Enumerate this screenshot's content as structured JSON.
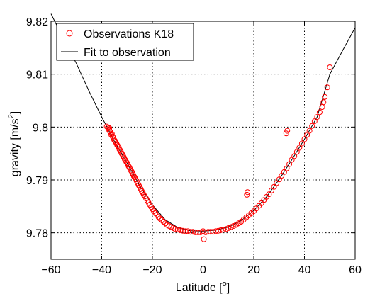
{
  "chart_data": {
    "type": "scatter",
    "title": "",
    "xlabel": "Latitude [",
    "xlabel_sup": "o",
    "xlabel_end": "]",
    "ylabel": "gravity [m/s",
    "ylabel_sup": "2",
    "ylabel_end": "]",
    "xlim": [
      -60,
      60
    ],
    "ylim": [
      9.775,
      9.82
    ],
    "xticks": [
      -60,
      -40,
      -20,
      0,
      20,
      40,
      60
    ],
    "xtick_labels": [
      "−60",
      "−40",
      "−20",
      "0",
      "20",
      "40",
      "60"
    ],
    "yticks": [
      9.78,
      9.79,
      9.8,
      9.81,
      9.82
    ],
    "ytick_labels": [
      "9.78",
      "9.79",
      "9.8",
      "9.81",
      "9.82"
    ],
    "grid": true,
    "legend_position": "top-left",
    "colors": {
      "observations": "#ff0000",
      "fit": "#000000",
      "grid": "#000000"
    },
    "series": [
      {
        "name": "Observations K18",
        "marker": "circle",
        "points": [
          [
            -38,
            9.8001
          ],
          [
            -37.6,
            9.7999
          ],
          [
            -37.2,
            9.7995
          ],
          [
            -37,
            9.7998
          ],
          [
            -36.8,
            9.7992
          ],
          [
            -36.5,
            9.799
          ],
          [
            -36.2,
            9.7985
          ],
          [
            -36,
            9.7987
          ],
          [
            -35.7,
            9.7982
          ],
          [
            -35.4,
            9.798
          ],
          [
            -35.1,
            9.7976
          ],
          [
            -34.8,
            9.7974
          ],
          [
            -34.5,
            9.7972
          ],
          [
            -34.2,
            9.7969
          ],
          [
            -33.9,
            9.7966
          ],
          [
            -33.6,
            9.7964
          ],
          [
            -33.3,
            9.7962
          ],
          [
            -33,
            9.7958
          ],
          [
            -32.7,
            9.7956
          ],
          [
            -32.4,
            9.7953
          ],
          [
            -32.1,
            9.795
          ],
          [
            -31.8,
            9.7948
          ],
          [
            -31.5,
            9.7945
          ],
          [
            -31.2,
            9.7942
          ],
          [
            -30.9,
            9.7939
          ],
          [
            -30.6,
            9.7937
          ],
          [
            -30.3,
            9.7934
          ],
          [
            -30,
            9.7932
          ],
          [
            -29.7,
            9.7929
          ],
          [
            -29.4,
            9.7926
          ],
          [
            -29.1,
            9.7924
          ],
          [
            -28.8,
            9.7921
          ],
          [
            -28.5,
            9.7918
          ],
          [
            -28.2,
            9.7916
          ],
          [
            -27.9,
            9.7913
          ],
          [
            -27.6,
            9.791
          ],
          [
            -27.3,
            9.7907
          ],
          [
            -27,
            9.7905
          ],
          [
            -26.6,
            9.7901
          ],
          [
            -26.2,
            9.7898
          ],
          [
            -25.8,
            9.7894
          ],
          [
            -25.4,
            9.789
          ],
          [
            -25,
            9.7887
          ],
          [
            -24.6,
            9.7883
          ],
          [
            -24.2,
            9.7879
          ],
          [
            -23.8,
            9.7876
          ],
          [
            -23.4,
            9.7872
          ],
          [
            -23,
            9.7869
          ],
          [
            -22.5,
            9.7865
          ],
          [
            -22,
            9.7861
          ],
          [
            -21.5,
            9.7857
          ],
          [
            -21,
            9.7853
          ],
          [
            -20.5,
            9.7849
          ],
          [
            -20,
            9.7845
          ],
          [
            -19.4,
            9.7841
          ],
          [
            -18.8,
            9.7837
          ],
          [
            -18.2,
            9.7834
          ],
          [
            -17.6,
            9.783
          ],
          [
            -17,
            9.7827
          ],
          [
            -16.3,
            9.7824
          ],
          [
            -15.6,
            9.7821
          ],
          [
            -14.9,
            9.7818
          ],
          [
            -14.2,
            9.7815
          ],
          [
            -13.4,
            9.7813
          ],
          [
            -12.6,
            9.7811
          ],
          [
            -11.8,
            9.7809
          ],
          [
            -11,
            9.7807
          ],
          [
            -10,
            9.7806
          ],
          [
            -9,
            9.7805
          ],
          [
            -8,
            9.7804
          ],
          [
            -7,
            9.7803
          ],
          [
            -6,
            9.7803
          ],
          [
            -5,
            9.7802
          ],
          [
            -4,
            9.7802
          ],
          [
            -3,
            9.7801
          ],
          [
            -2,
            9.7801
          ],
          [
            -1,
            9.7801
          ],
          [
            0,
            9.7803
          ],
          [
            0.3,
            9.7788
          ],
          [
            1,
            9.7801
          ],
          [
            2,
            9.7802
          ],
          [
            3,
            9.7802
          ],
          [
            4,
            9.7802
          ],
          [
            5,
            9.7803
          ],
          [
            6,
            9.7804
          ],
          [
            7,
            9.7805
          ],
          [
            8,
            9.7806
          ],
          [
            9,
            9.7807
          ],
          [
            10,
            9.7809
          ],
          [
            11,
            9.7811
          ],
          [
            12,
            9.7813
          ],
          [
            13,
            9.7815
          ],
          [
            14,
            9.7818
          ],
          [
            15,
            9.7821
          ],
          [
            16,
            9.7825
          ],
          [
            17,
            9.7829
          ],
          [
            17.3,
            9.7872
          ],
          [
            17.5,
            9.7877
          ],
          [
            18,
            9.7833
          ],
          [
            19,
            9.7837
          ],
          [
            20,
            9.7841
          ],
          [
            21,
            9.7846
          ],
          [
            22,
            9.7851
          ],
          [
            23,
            9.7856
          ],
          [
            24,
            9.7862
          ],
          [
            25,
            9.7868
          ],
          [
            26,
            9.7873
          ],
          [
            27,
            9.788
          ],
          [
            28,
            9.7887
          ],
          [
            29,
            9.7894
          ],
          [
            30,
            9.7901
          ],
          [
            31,
            9.7908
          ],
          [
            32,
            9.7915
          ],
          [
            32.8,
            9.7988
          ],
          [
            33,
            9.7922
          ],
          [
            33.2,
            9.7993
          ],
          [
            34,
            9.793
          ],
          [
            35,
            9.7938
          ],
          [
            36,
            9.7945
          ],
          [
            37,
            9.7953
          ],
          [
            38,
            9.7961
          ],
          [
            39,
            9.7969
          ],
          [
            40,
            9.7977
          ],
          [
            41,
            9.7985
          ],
          [
            42,
            9.7993
          ],
          [
            43,
            9.8002
          ],
          [
            44,
            9.8011
          ],
          [
            45,
            9.8019
          ],
          [
            46,
            9.8028
          ],
          [
            47,
            9.8038
          ],
          [
            47.5,
            9.8047
          ],
          [
            48,
            9.8057
          ],
          [
            49,
            9.8075
          ],
          [
            50,
            9.8113
          ]
        ]
      },
      {
        "name": "Fit to observation",
        "marker": "line",
        "points": [
          [
            -60,
            9.8214
          ],
          [
            -55,
            9.8166
          ],
          [
            -50,
            9.812
          ],
          [
            -45,
            9.8068
          ],
          [
            -40,
            9.8019
          ],
          [
            -35,
            9.7973
          ],
          [
            -30,
            9.7932
          ],
          [
            -25,
            9.7889
          ],
          [
            -20,
            9.7853
          ],
          [
            -15,
            9.7825
          ],
          [
            -10,
            9.781
          ],
          [
            -5,
            9.7804
          ],
          [
            0,
            9.7803
          ],
          [
            5,
            9.7805
          ],
          [
            10,
            9.7811
          ],
          [
            15,
            9.7823
          ],
          [
            20,
            9.7842
          ],
          [
            25,
            9.7868
          ],
          [
            30,
            9.7901
          ],
          [
            35,
            9.7938
          ],
          [
            40,
            9.7977
          ],
          [
            45,
            9.8019
          ],
          [
            50,
            9.81
          ],
          [
            55,
            9.8144
          ],
          [
            60,
            9.8188
          ]
        ]
      }
    ]
  }
}
